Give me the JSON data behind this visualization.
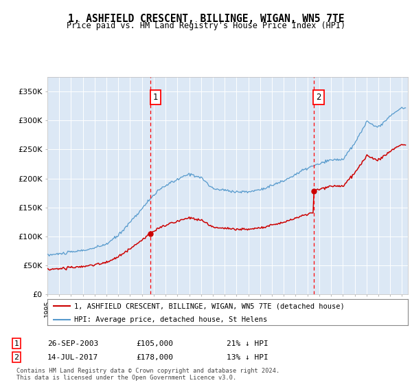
{
  "title": "1, ASHFIELD CRESCENT, BILLINGE, WIGAN, WN5 7TE",
  "subtitle": "Price paid vs. HM Land Registry's House Price Index (HPI)",
  "footnote": "Contains HM Land Registry data © Crown copyright and database right 2024.\nThis data is licensed under the Open Government Licence v3.0.",
  "legend_line1": "1, ASHFIELD CRESCENT, BILLINGE, WIGAN, WN5 7TE (detached house)",
  "legend_line2": "HPI: Average price, detached house, St Helens",
  "sale1_date": "26-SEP-2003",
  "sale1_price": 105000,
  "sale1_label": "21% ↓ HPI",
  "sale2_date": "14-JUL-2017",
  "sale2_price": 178000,
  "sale2_label": "13% ↓ HPI",
  "ylim": [
    0,
    375000
  ],
  "yticks": [
    0,
    50000,
    100000,
    150000,
    200000,
    250000,
    300000,
    350000
  ],
  "ytick_labels": [
    "£0",
    "£50K",
    "£100K",
    "£150K",
    "£200K",
    "£250K",
    "£300K",
    "£350K"
  ],
  "bg_color": "#dce8f5",
  "sale1_x": 2003.73,
  "sale2_x": 2017.53,
  "line_color_red": "#cc0000",
  "line_color_blue": "#5599cc",
  "xlim_left": 1995,
  "xlim_right": 2025.5
}
